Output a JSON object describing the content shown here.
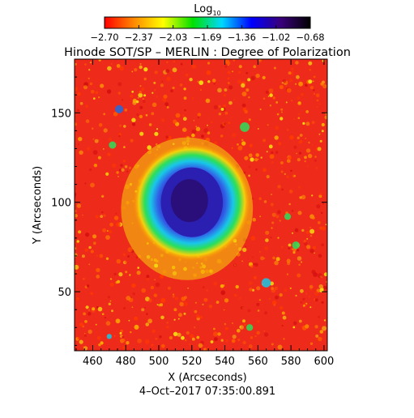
{
  "figure": {
    "title": "Hinode SOT/SP – MERLIN : Degree of Polarization",
    "timestamp": "4–Oct–2017 07:35:00.891"
  },
  "colorbar": {
    "label": "Log",
    "label_subscript": "10",
    "colormap": [
      "#ff0000",
      "#ff8a00",
      "#ffff00",
      "#00e000",
      "#00d8ff",
      "#0000ff",
      "#3a007a",
      "#000000"
    ],
    "tick_labels": [
      "−2.70",
      "−2.37",
      "−2.03",
      "−1.69",
      "−1.36",
      "−1.02",
      "−0.68"
    ]
  },
  "plot": {
    "xlabel": "X (Arcseconds)",
    "ylabel": "Y (Arcseconds)",
    "x_range": [
      449,
      602
    ],
    "y_range": [
      17,
      180
    ],
    "x_ticks": [
      460,
      480,
      500,
      520,
      540,
      560,
      580,
      600
    ],
    "y_ticks": [
      50,
      100,
      150
    ],
    "x_tick_labels": [
      "460",
      "480",
      "500",
      "520",
      "540",
      "560",
      "580",
      "600"
    ],
    "y_tick_labels": [
      "50",
      "100",
      "150"
    ],
    "sunspot": {
      "umbra_center": [
        520,
        100
      ],
      "umbra_radius": 15,
      "penumbra_radius": 23,
      "plage_radius": 38
    },
    "colors": {
      "background_field": "#ee2a1a",
      "plage": "#f4d20c",
      "penumbra": "#19c7e8",
      "umbra": "#2a1fb0",
      "umbra_core": "#2a0a6b"
    }
  }
}
